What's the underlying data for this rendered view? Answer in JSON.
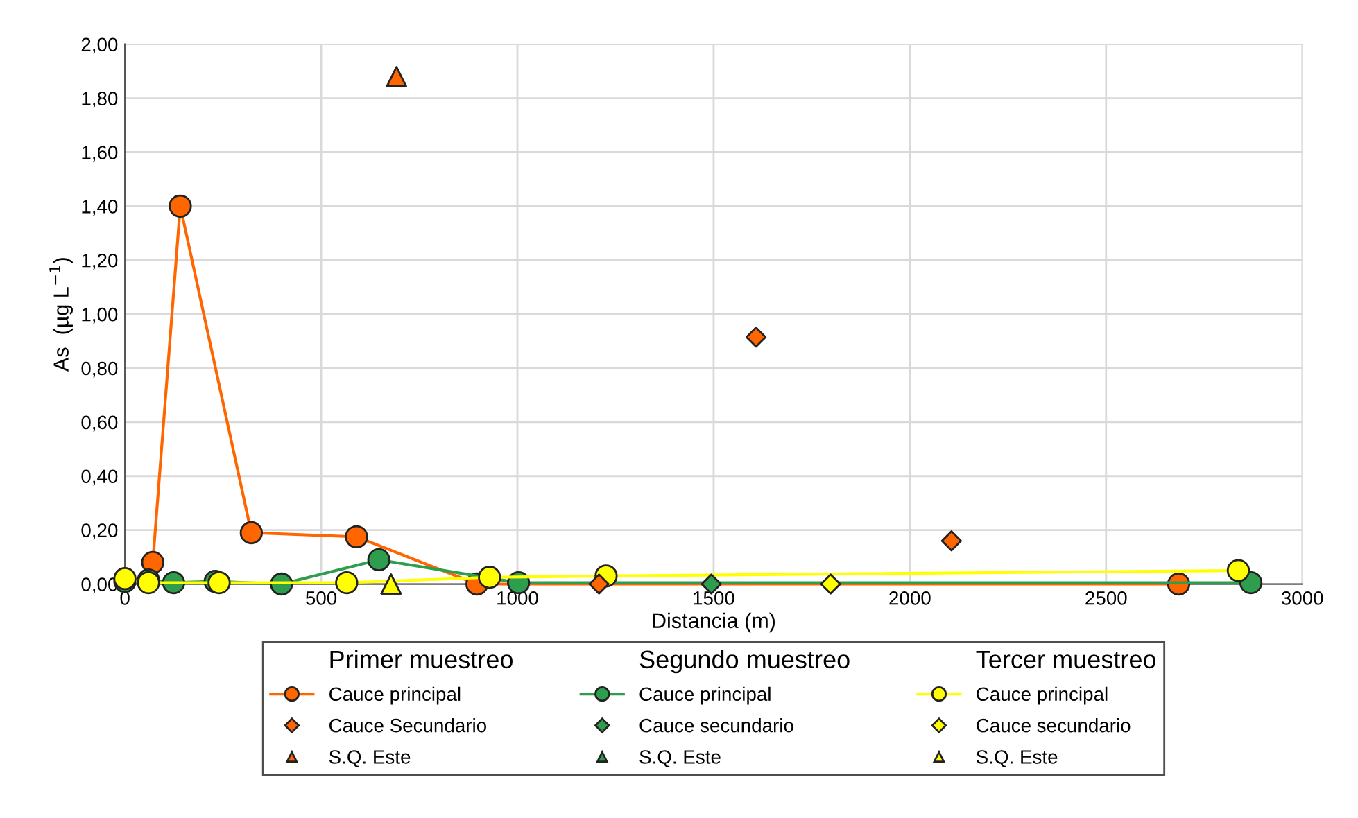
{
  "chart_data": {
    "type": "line",
    "xlabel": "Distancia (m)",
    "ylabel": "As  (µg L$^{−1}$)",
    "xlim": [
      0,
      3000
    ],
    "xticks": [
      0,
      500,
      1000,
      1500,
      2000,
      2500,
      3000
    ],
    "ylim": [
      0,
      2
    ],
    "yticks": [
      {
        "value": 0,
        "label": "0,00"
      },
      {
        "value": 0.2,
        "label": "0,20"
      },
      {
        "value": 0.4,
        "label": "0,40"
      },
      {
        "value": 0.6,
        "label": "0,60"
      },
      {
        "value": 0.8,
        "label": "0,80"
      },
      {
        "value": 1.0,
        "label": "1,00"
      },
      {
        "value": 1.2,
        "label": "1,20"
      },
      {
        "value": 1.4,
        "label": "1,40"
      },
      {
        "value": 1.6,
        "label": "1,60"
      },
      {
        "value": 1.8,
        "label": "1,80"
      },
      {
        "value": 2.0,
        "label": "2,00"
      }
    ],
    "grid": true,
    "legend": "bottom",
    "annotations": [
      "Primer muestreo",
      "Segundo muestreo",
      "Tercer muestreo"
    ],
    "series": [
      {
        "name": "Cauce principal",
        "marker": "circle",
        "color": "#ff6600",
        "x": [
          71,
          141,
          322,
          590,
          897,
          2685
        ],
        "values": [
          0.08,
          1.4,
          0.19,
          0.175,
          0.0,
          0.0
        ]
      },
      {
        "name": "Cauce Secundario",
        "type": "scatter",
        "marker": "diamond",
        "color": "#ff6600",
        "x": [
          1208,
          1608,
          2106
        ],
        "values": [
          0.0,
          0.915,
          0.16
        ]
      },
      {
        "name": "S.Q. Este",
        "type": "scatter",
        "marker": "triangle",
        "color": "#ff6600",
        "x": [
          692
        ],
        "values": [
          1.88
        ]
      },
      {
        "name": "Cauce principal",
        "marker": "circle",
        "color": "#2e9e4e",
        "x": [
          0,
          60,
          124,
          230,
          399,
          647,
          1003,
          2869
        ],
        "values": [
          0.01,
          0.015,
          0.005,
          0.01,
          0.0,
          0.09,
          0.005,
          0.005
        ]
      },
      {
        "name": "Cauce secundario",
        "type": "scatter",
        "marker": "diamond",
        "color": "#2e9e4e",
        "x": [
          1494
        ],
        "values": [
          0.0
        ]
      },
      {
        "name": "S.Q. Este",
        "type": "scatter",
        "marker": "triangle",
        "color": "#2e9e4e",
        "x": [
          678
        ],
        "values": [
          0.0
        ]
      },
      {
        "name": "Cauce principal",
        "marker": "circle",
        "color": "#ffff00",
        "x": [
          0,
          60,
          240,
          565,
          929,
          1226,
          2837
        ],
        "values": [
          0.02,
          0.005,
          0.005,
          0.005,
          0.025,
          0.03,
          0.05
        ]
      },
      {
        "name": "Cauce secundario",
        "type": "scatter",
        "marker": "diamond",
        "color": "#ffff00",
        "x": [
          1798
        ],
        "values": [
          0.0
        ]
      },
      {
        "name": "S.Q. Este",
        "type": "scatter",
        "marker": "triangle",
        "color": "#ffff00",
        "x": [
          678
        ],
        "values": [
          0.0
        ]
      }
    ]
  }
}
